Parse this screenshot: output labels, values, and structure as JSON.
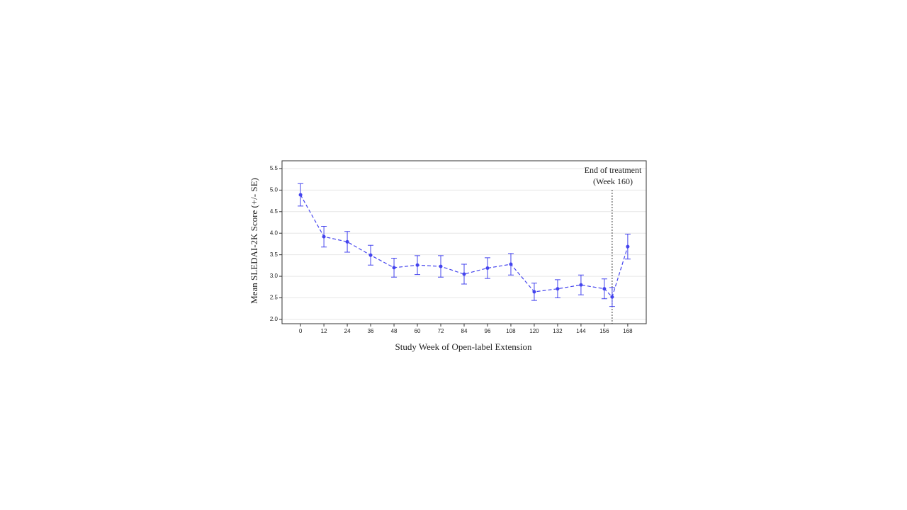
{
  "chart_data": {
    "type": "line",
    "x_label": "Study Week of Open-label Extension",
    "y_label": "Mean SLEDAI-2K  Score (+/- SE)",
    "x": [
      0,
      12,
      24,
      36,
      48,
      60,
      72,
      84,
      96,
      108,
      120,
      132,
      144,
      156,
      160,
      168
    ],
    "series": [
      {
        "color": "#4444ee",
        "values": [
          4.89,
          3.92,
          3.8,
          3.49,
          3.2,
          3.26,
          3.23,
          3.05,
          3.19,
          3.28,
          2.64,
          2.71,
          2.8,
          2.71,
          2.52,
          3.69
        ],
        "errors": [
          0.26,
          0.24,
          0.24,
          0.23,
          0.22,
          0.22,
          0.25,
          0.23,
          0.24,
          0.25,
          0.2,
          0.21,
          0.23,
          0.23,
          0.22,
          0.29
        ]
      }
    ],
    "xlim": [
      -9.5,
      177.5
    ],
    "ylim": [
      1.9,
      5.68
    ],
    "xticks": [
      0,
      12,
      24,
      36,
      48,
      60,
      72,
      84,
      96,
      108,
      120,
      132,
      144,
      156,
      168
    ],
    "yticks": [
      {
        "value": 2,
        "label": "2.0"
      },
      2.5,
      {
        "value": 3,
        "label": "3.0"
      },
      3.5,
      {
        "value": 4,
        "label": "4.0"
      },
      4.5,
      {
        "value": 5,
        "label": "5.0"
      },
      5.5
    ],
    "grid": true,
    "vline": {
      "x": 160,
      "label": [
        "End of treatment",
        "(Week 160)"
      ]
    }
  }
}
